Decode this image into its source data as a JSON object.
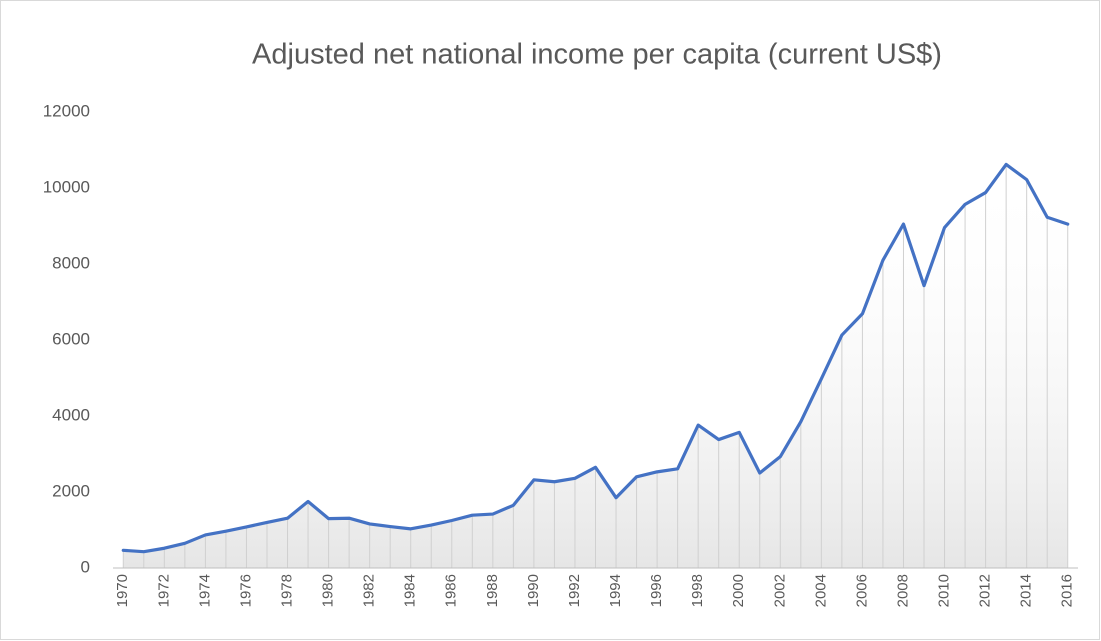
{
  "chart_data": {
    "type": "line",
    "title": "Adjusted net national income per capita (current US$)",
    "categories": [
      "1970",
      null,
      "1972",
      null,
      "1974",
      null,
      "1976",
      null,
      "1978",
      null,
      "1980",
      null,
      "1982",
      null,
      "1984",
      null,
      "1986",
      null,
      "1988",
      null,
      "1990",
      null,
      "1992",
      null,
      "1994",
      null,
      "1996",
      null,
      "1998",
      null,
      "2000",
      null,
      "2002",
      null,
      "2004",
      null,
      "2006",
      null,
      "2008",
      null,
      "2010",
      null,
      "2012",
      null,
      "2014",
      null,
      "2016"
    ],
    "series": [
      {
        "name": "Adjusted net national income per capita (current US$)",
        "color": "#4472c4",
        "values": [
          465,
          430,
          520,
          650,
          870,
          970,
          1080,
          1200,
          1310,
          1750,
          1300,
          1310,
          1160,
          1090,
          1030,
          1130,
          1250,
          1390,
          1420,
          1650,
          2320,
          2270,
          2360,
          2650,
          1850,
          2400,
          2530,
          2610,
          3760,
          3380,
          3570,
          2500,
          2930,
          3850,
          4980,
          6130,
          6690,
          8100,
          9050,
          7430,
          8960,
          9570,
          9880,
          10620,
          10220,
          9230,
          9050
        ]
      }
    ],
    "ylim": [
      0,
      12000
    ],
    "yticks": [
      0,
      2000,
      4000,
      6000,
      8000,
      10000,
      12000
    ],
    "grid": false,
    "drop_lines": true,
    "legend": false
  }
}
